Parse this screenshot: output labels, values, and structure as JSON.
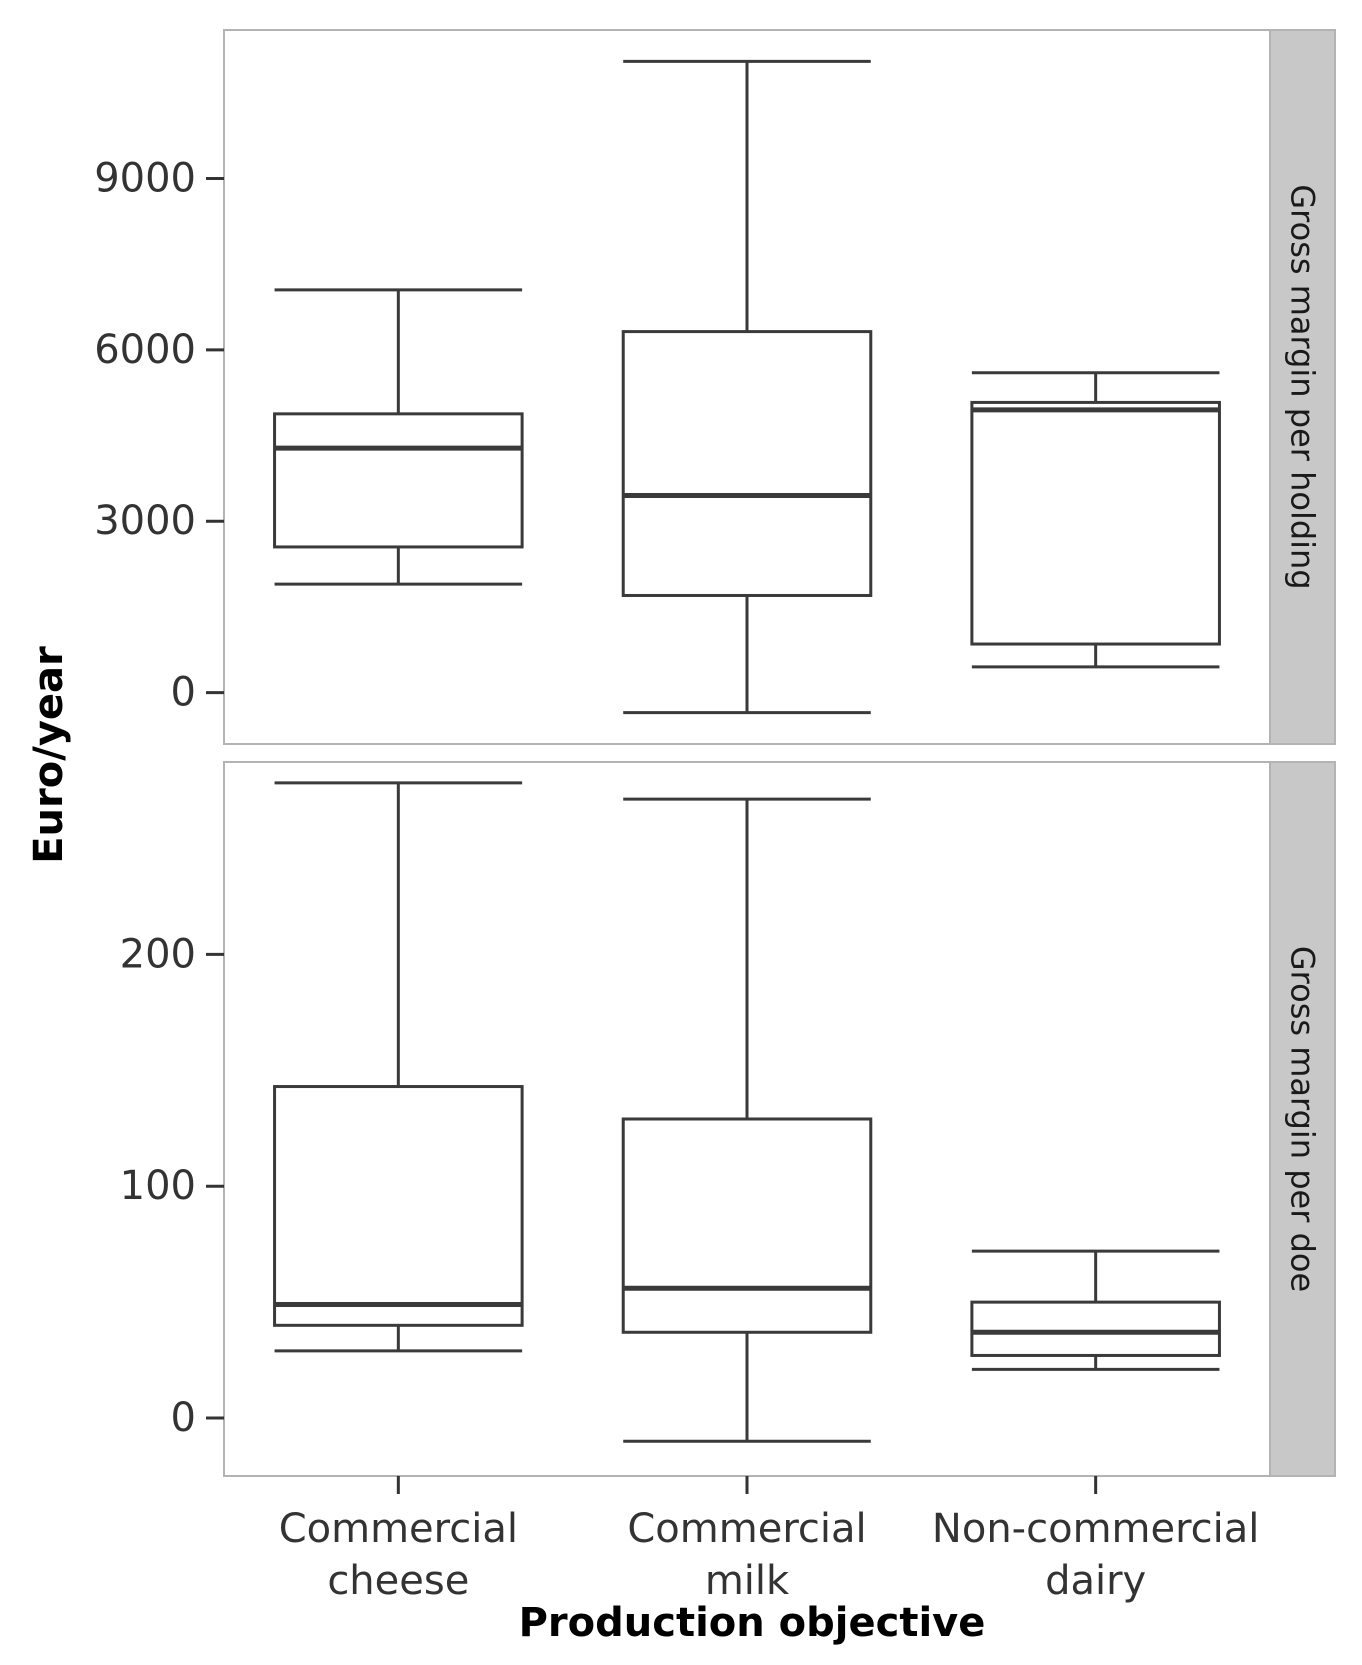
{
  "chart_data": {
    "type": "boxplot",
    "xlabel": "Production objective",
    "ylabel": "Euro/year",
    "categories": [
      [
        "Commercial",
        "cheese"
      ],
      [
        "Commercial",
        "milk"
      ],
      [
        "Non-commercial",
        "dairy"
      ]
    ],
    "colors": {
      "box_stroke": "#3a3a3a",
      "strip_fill": "#c8c8c8",
      "panel_border": "#b3b3b3"
    },
    "panels": [
      {
        "strip_label": "Gross margin per holding",
        "ylim": [
          -900,
          11600
        ],
        "yticks": [
          0,
          3000,
          6000,
          9000
        ],
        "boxes": [
          {
            "whisker_low": 1900,
            "q1": 2550,
            "median": 4280,
            "q3": 4880,
            "whisker_high": 7050
          },
          {
            "whisker_low": -350,
            "q1": 1700,
            "median": 3450,
            "q3": 6320,
            "whisker_high": 11050
          },
          {
            "whisker_low": 450,
            "q1": 850,
            "median": 4950,
            "q3": 5080,
            "whisker_high": 5600
          }
        ]
      },
      {
        "strip_label": "Gross margin per doe",
        "ylim": [
          -25,
          283
        ],
        "yticks": [
          0,
          100,
          200
        ],
        "boxes": [
          {
            "whisker_low": 29,
            "q1": 40,
            "median": 49,
            "q3": 143,
            "whisker_high": 274
          },
          {
            "whisker_low": -10,
            "q1": 37,
            "median": 56,
            "q3": 129,
            "whisker_high": 267
          },
          {
            "whisker_low": 21,
            "q1": 27,
            "median": 37,
            "q3": 50,
            "whisker_high": 72
          }
        ]
      }
    ]
  }
}
